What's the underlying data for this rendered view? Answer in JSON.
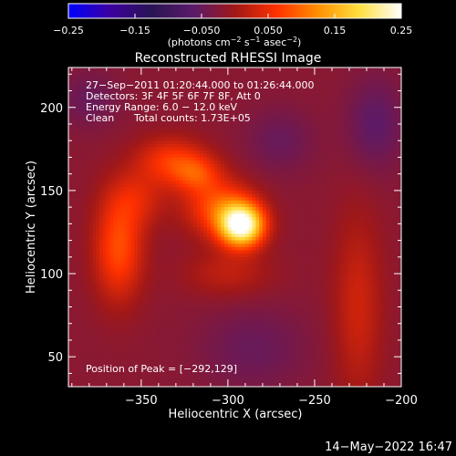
{
  "chart_data": {
    "type": "heatmap",
    "title": "Reconstructed RHESSI Image",
    "xlabel": "Heliocentric X (arcsec)",
    "ylabel": "Heliocentric Y (arcsec)",
    "xlim": [
      -392,
      -200
    ],
    "ylim": [
      32,
      224
    ],
    "x_ticks": [
      -350,
      -300,
      -250,
      -200
    ],
    "x_tick_labels": [
      "−350",
      "−300",
      "−250",
      "−200"
    ],
    "y_ticks": [
      50,
      100,
      150,
      200
    ],
    "y_tick_labels": [
      "50",
      "100",
      "150",
      "200"
    ],
    "colorbar": {
      "range": [
        -0.25,
        0.25
      ],
      "ticks": [
        -0.25,
        -0.15,
        -0.05,
        0.05,
        0.15,
        0.25
      ],
      "tick_labels": [
        "−0.25",
        "−0.15",
        "−0.050",
        "0.050",
        "0.15",
        "0.25"
      ],
      "units_text": "(photons cm",
      "units_exp1": "−2",
      "units_mid": " s",
      "units_exp2": "−1",
      "units_mid2": " asec",
      "units_exp3": "−2",
      "units_end": ")",
      "colors": [
        "#0000ff",
        "#3c00a0",
        "#2a1454",
        "#5a1a6a",
        "#a01818",
        "#ff3000",
        "#ff9000",
        "#ffe040",
        "#ffffff"
      ]
    },
    "annotations": {
      "time_range": "27−Sep−2011 01:20:44.000 to 01:26:44.000",
      "detectors": "Detectors: 3F 4F 5F 6F 7F 8F, Att 0",
      "energy_range": "Energy Range: 6.0 − 12.0 keV",
      "method": "Clean",
      "total_counts": "Total counts: 1.73E+05",
      "peak": "Position of Peak = [−292,129]"
    },
    "background_value": -0.02,
    "sources": [
      {
        "x": -292,
        "y": 129,
        "sx": 9,
        "sy": 9,
        "amp": 0.27
      },
      {
        "x": -305,
        "y": 140,
        "sx": 14,
        "sy": 12,
        "amp": 0.1
      },
      {
        "x": -333,
        "y": 168,
        "sx": 14,
        "sy": 10,
        "amp": 0.08
      },
      {
        "x": -318,
        "y": 160,
        "sx": 10,
        "sy": 8,
        "amp": 0.07
      },
      {
        "x": -363,
        "y": 115,
        "sx": 10,
        "sy": 22,
        "amp": 0.1
      },
      {
        "x": -352,
        "y": 145,
        "sx": 12,
        "sy": 12,
        "amp": 0.05
      },
      {
        "x": -300,
        "y": 100,
        "sx": 18,
        "sy": 10,
        "amp": 0.04
      },
      {
        "x": -225,
        "y": 80,
        "sx": 10,
        "sy": 40,
        "amp": 0.05
      },
      {
        "x": -215,
        "y": 190,
        "sx": 12,
        "sy": 20,
        "amp": -0.04
      },
      {
        "x": -270,
        "y": 180,
        "sx": 14,
        "sy": 14,
        "amp": -0.03
      },
      {
        "x": -285,
        "y": 55,
        "sx": 22,
        "sy": 18,
        "amp": -0.03
      },
      {
        "x": -380,
        "y": 205,
        "sx": 12,
        "sy": 12,
        "amp": -0.03
      }
    ]
  },
  "footer": {
    "timestamp": "14−May−2022 16:47"
  }
}
